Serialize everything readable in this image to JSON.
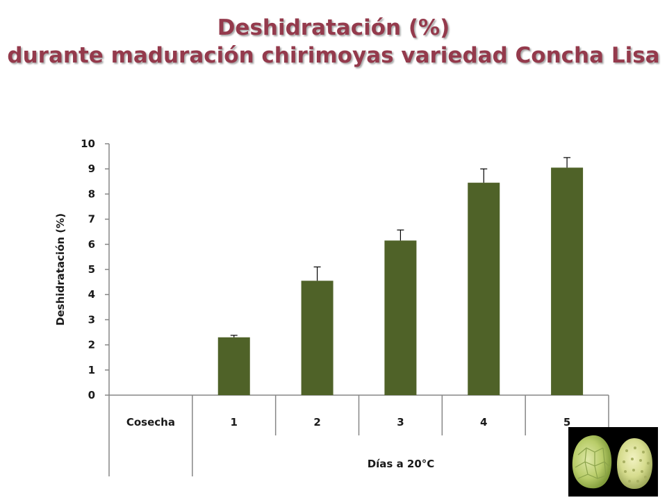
{
  "title": {
    "line1": "Deshidratación (%)",
    "line2": "durante maduración chirimoyas variedad Concha Lisa"
  },
  "colors": {
    "title": "#943a4c",
    "bar": "#4f6228",
    "axis": "#868686"
  },
  "photo": {
    "icon": "chirimoya-fruits-image"
  },
  "chart_data": {
    "type": "bar",
    "title": "",
    "xlabel": "Días a 20°C",
    "ylabel": "Deshidratación (%)",
    "categories": [
      "Cosecha",
      "1",
      "2",
      "3",
      "4",
      "5"
    ],
    "values": [
      0,
      2.3,
      4.55,
      6.15,
      8.45,
      9.05
    ],
    "error": [
      0,
      0.08,
      0.55,
      0.42,
      0.55,
      0.4
    ],
    "ylim": [
      0,
      10
    ],
    "yticks": [
      0,
      1,
      2,
      3,
      4,
      5,
      6,
      7,
      8,
      9,
      10
    ],
    "grid": false,
    "legend": "none"
  }
}
